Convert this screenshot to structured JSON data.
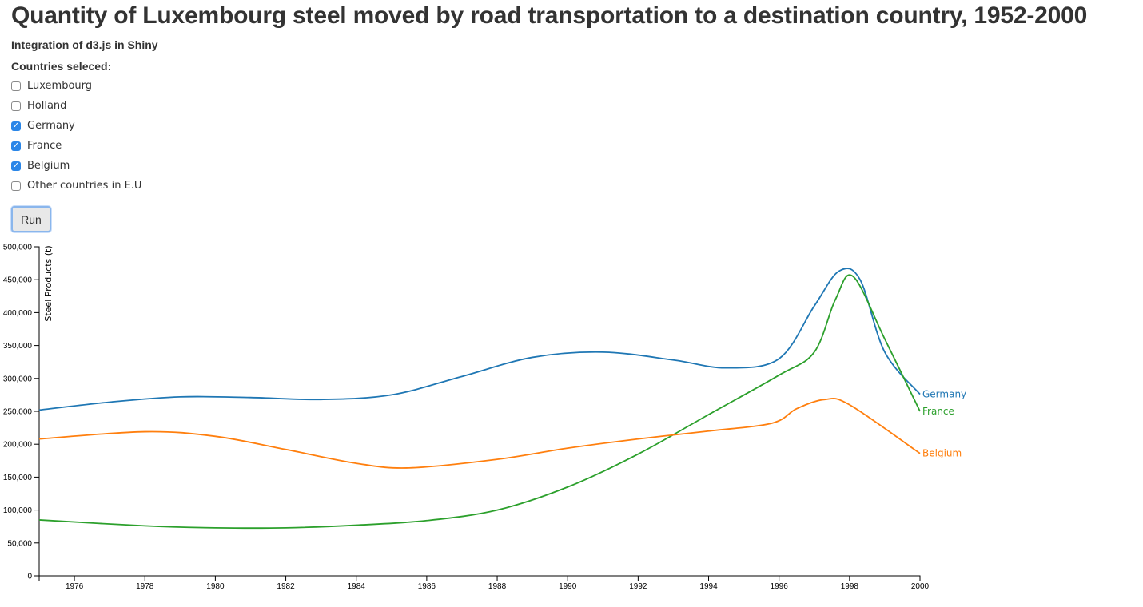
{
  "header": {
    "title": "Quantity of Luxembourg steel moved by road transportation to a destination country, 1952-2000",
    "subtitle": "Integration of d3.js in Shiny"
  },
  "controls": {
    "countries_label": "Countries seleced:",
    "countries": [
      {
        "label": "Luxembourg",
        "checked": false
      },
      {
        "label": "Holland",
        "checked": false
      },
      {
        "label": "Germany",
        "checked": true
      },
      {
        "label": "France",
        "checked": true
      },
      {
        "label": "Belgium",
        "checked": true
      },
      {
        "label": "Other countries in E.U",
        "checked": false
      }
    ],
    "run_label": "Run"
  },
  "chart_data": {
    "type": "line",
    "ylabel": "Steel Products (t)",
    "xlabel": "",
    "xlim": [
      1975,
      2000
    ],
    "ylim": [
      0,
      500000
    ],
    "x_ticks": [
      1976,
      1978,
      1980,
      1982,
      1984,
      1986,
      1988,
      1990,
      1992,
      1994,
      1996,
      1998,
      2000
    ],
    "y_ticks": [
      0,
      50000,
      100000,
      150000,
      200000,
      250000,
      300000,
      350000,
      400000,
      450000,
      500000
    ],
    "y_tick_labels": [
      "0",
      "50,000",
      "100,000",
      "150,000",
      "200,000",
      "250,000",
      "300,000",
      "350,000",
      "400,000",
      "450,000",
      "500,000"
    ],
    "grid": false,
    "legend": "inline labels at line ends",
    "series": [
      {
        "name": "Germany",
        "color": "#1f77b4",
        "x": [
          1975,
          1977,
          1979,
          1981,
          1983,
          1985,
          1987,
          1989,
          1991,
          1993,
          1994.5,
          1996,
          1997,
          1997.7,
          1998.3,
          1999,
          2000
        ],
        "y": [
          252000,
          264000,
          272000,
          271000,
          268000,
          275000,
          303000,
          332000,
          340000,
          328000,
          316000,
          330000,
          410000,
          463000,
          450000,
          340000,
          276000
        ]
      },
      {
        "name": "France",
        "color": "#2ca02c",
        "x": [
          1975,
          1978,
          1980,
          1982,
          1984,
          1986,
          1988,
          1990,
          1992,
          1994,
          1996,
          1997,
          1997.6,
          1998.1,
          1999,
          2000
        ],
        "y": [
          85000,
          76000,
          73000,
          73000,
          77000,
          84000,
          100000,
          135000,
          185000,
          245000,
          305000,
          340000,
          420000,
          455000,
          360000,
          250000
        ]
      },
      {
        "name": "Belgium",
        "color": "#ff7f0e",
        "x": [
          1975,
          1978,
          1980,
          1982,
          1984,
          1985.5,
          1988,
          1990,
          1992,
          1994,
          1995.8,
          1996.5,
          1997.3,
          1998,
          2000
        ],
        "y": [
          208000,
          219000,
          212000,
          192000,
          171000,
          164000,
          177000,
          194000,
          208000,
          220000,
          232000,
          254000,
          268000,
          260000,
          186000
        ]
      }
    ]
  }
}
